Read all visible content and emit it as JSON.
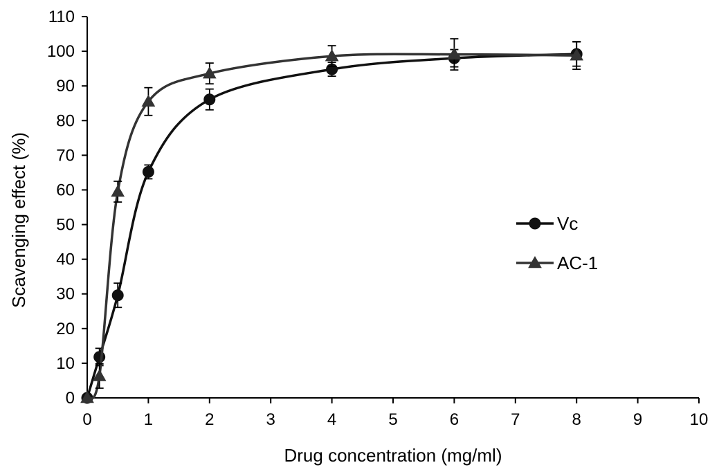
{
  "chart_data": {
    "type": "line",
    "title": "",
    "xlabel": "Drug concentration (mg/ml)",
    "ylabel": "Scavenging effect (%)",
    "xlim": [
      0,
      10
    ],
    "ylim": [
      0,
      110
    ],
    "xticks": [
      "0",
      "1",
      "2",
      "3",
      "4",
      "5",
      "6",
      "7",
      "8",
      "9",
      "10"
    ],
    "yticks": [
      "0",
      "10",
      "20",
      "30",
      "40",
      "50",
      "60",
      "70",
      "80",
      "90",
      "100",
      "110"
    ],
    "grid": false,
    "legend_position": "right",
    "series": [
      {
        "name": "Vc",
        "marker": "circle",
        "color": "#111111",
        "x": [
          0,
          0.2,
          0.5,
          1,
          2,
          4,
          6,
          8
        ],
        "y": [
          0,
          11.8,
          29.6,
          65.2,
          86.1,
          94.8,
          98.0,
          99.2
        ],
        "err": [
          0,
          2.5,
          3.5,
          2.0,
          3.0,
          2.0,
          2.5,
          3.5
        ]
      },
      {
        "name": "AC-1",
        "marker": "triangle",
        "color": "#333333",
        "x": [
          0,
          0.2,
          0.5,
          1,
          2,
          4,
          6,
          8
        ],
        "y": [
          0,
          6.3,
          59.5,
          85.5,
          93.6,
          98.6,
          99.1,
          98.8
        ],
        "err": [
          0,
          3.5,
          3.0,
          4.0,
          3.0,
          3.0,
          4.5,
          4.0
        ]
      }
    ]
  }
}
